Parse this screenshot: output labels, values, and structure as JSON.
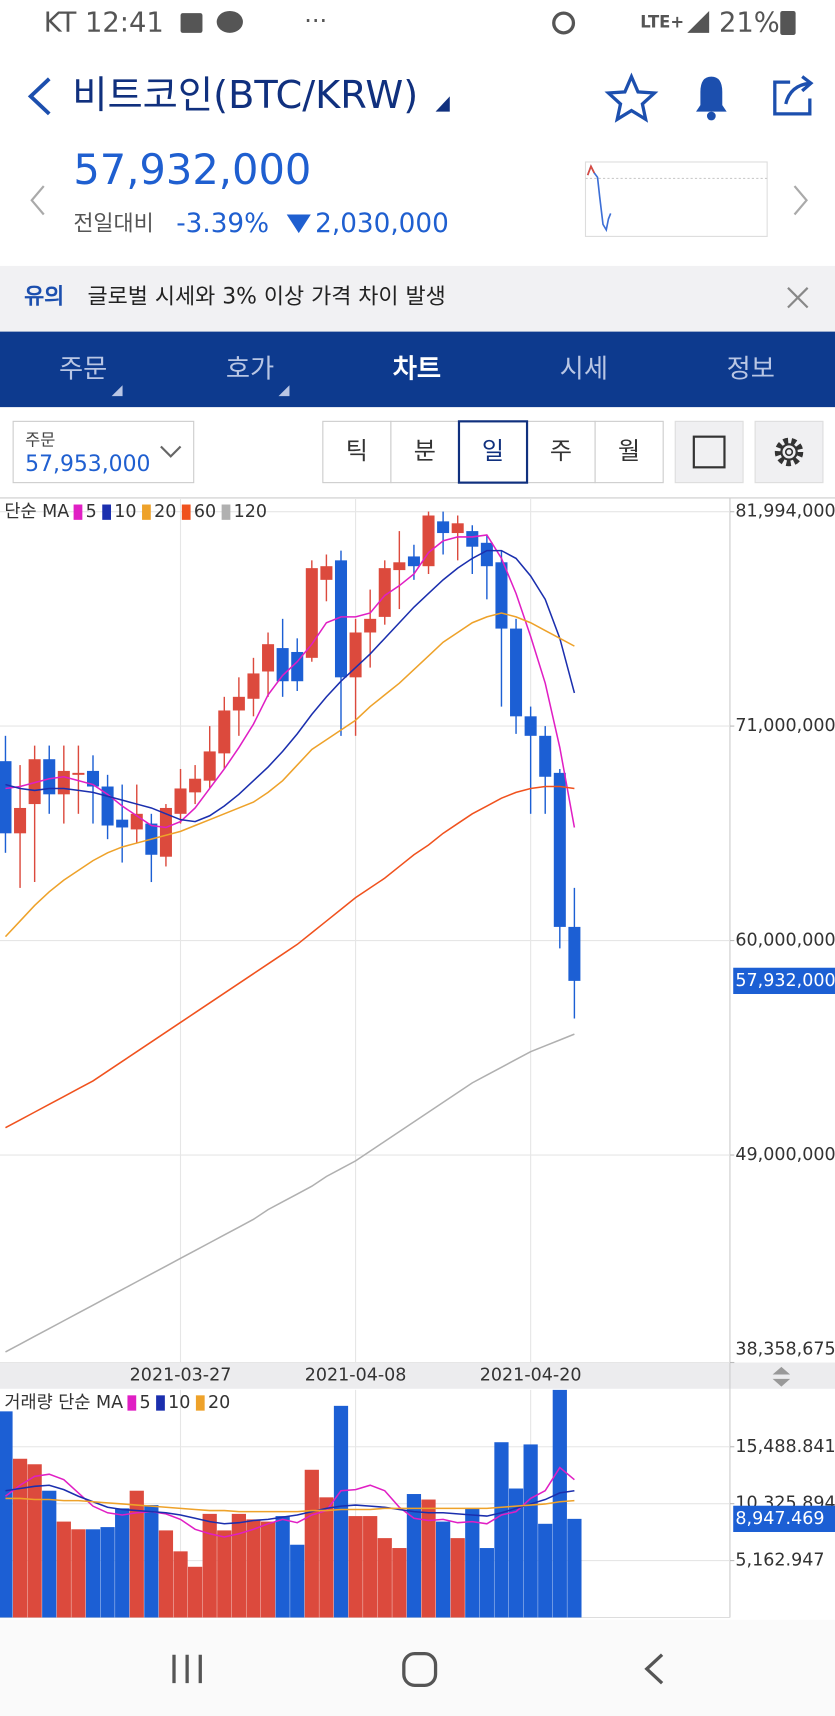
{
  "status_bar": {
    "time": "KT 12:41",
    "network": "LTE+",
    "battery": "21%"
  },
  "header": {
    "title": "비트코인(BTC/KRW)",
    "price": "57,932,000",
    "change_label": "전일대비",
    "change_pct": "-3.39%",
    "change_amount": "2,030,000"
  },
  "notice": {
    "tag": "유의",
    "text": "글로벌 시세와 3% 이상 가격 차이 발생"
  },
  "tabs": [
    "주문",
    "호가",
    "차트",
    "시세",
    "정보"
  ],
  "order": {
    "label": "주문",
    "price": "57,953,000"
  },
  "periods": [
    "틱",
    "분",
    "일",
    "주",
    "월"
  ],
  "chart_data": [
    {
      "type": "candlestick",
      "legend_title": "단순 MA",
      "categories": [
        null,
        null,
        null,
        null,
        null,
        null,
        null,
        null,
        null,
        null,
        null,
        null,
        "2021-03-27",
        null,
        null,
        null,
        null,
        null,
        null,
        null,
        null,
        null,
        null,
        null,
        "2021-04-08",
        null,
        null,
        null,
        null,
        null,
        null,
        null,
        null,
        null,
        null,
        null,
        "2021-04-20",
        null,
        null,
        null
      ],
      "open": [
        69200000,
        65500000,
        67000000,
        69300000,
        67500000,
        68500000,
        68700000,
        67900000,
        66200000,
        65700000,
        66000000,
        64300000,
        66500000,
        67600000,
        68200000,
        69600000,
        71800000,
        72400000,
        73800000,
        75000000,
        74800000,
        74500000,
        78500000,
        79500000,
        73500000,
        75800000,
        76600000,
        79000000,
        79700000,
        79200000,
        81500000,
        80900000,
        81000000,
        80400000,
        79400000,
        76000000,
        71500000,
        70500000,
        68600000,
        60700000
      ],
      "high": [
        70500000,
        69000000,
        70000000,
        70000000,
        70000000,
        70000000,
        69500000,
        68500000,
        68000000,
        68000000,
        66500000,
        67000000,
        68800000,
        69000000,
        71000000,
        72500000,
        73500000,
        74500000,
        75800000,
        76500000,
        75500000,
        79500000,
        79800000,
        80000000,
        76500000,
        78000000,
        79500000,
        81000000,
        80300000,
        82000000,
        82000000,
        81800000,
        81300000,
        80800000,
        80000000,
        76500000,
        72000000,
        71000000,
        68800000,
        62700000
      ],
      "low": [
        64500000,
        62700000,
        63000000,
        66500000,
        66000000,
        66500000,
        66000000,
        65200000,
        64000000,
        65000000,
        63000000,
        63800000,
        66000000,
        67000000,
        67800000,
        68800000,
        70500000,
        71500000,
        72500000,
        72500000,
        72800000,
        74300000,
        77400000,
        70500000,
        70500000,
        74000000,
        76200000,
        77000000,
        78500000,
        78800000,
        79800000,
        79500000,
        78800000,
        77500000,
        72000000,
        70600000,
        66500000,
        66500000,
        59600000,
        56000000
      ],
      "close": [
        65500000,
        66800000,
        69300000,
        67500000,
        68700000,
        68600000,
        67900000,
        65900000,
        65800000,
        66500000,
        64400000,
        66800000,
        67800000,
        68300000,
        69700000,
        71800000,
        72500000,
        73700000,
        75200000,
        73300000,
        73300000,
        79100000,
        79200000,
        73500000,
        75800000,
        76500000,
        79100000,
        79400000,
        79200000,
        81800000,
        80900000,
        81400000,
        80200000,
        79200000,
        76000000,
        71500000,
        70500000,
        68400000,
        60700000,
        57932000
      ],
      "up_color": "#dc4a3d",
      "down_color": "#1c5fd4",
      "ma_series": [
        {
          "name": "5",
          "color": "#e01fc4",
          "values": [
            67800000,
            67900000,
            68100000,
            68300000,
            68400000,
            68200000,
            68000000,
            67500000,
            66900000,
            66400000,
            65900000,
            65800000,
            66100000,
            66800000,
            67800000,
            68800000,
            69900000,
            71100000,
            72600000,
            73600000,
            74300000,
            75200000,
            76300000,
            76600000,
            76600000,
            76800000,
            77700000,
            78200000,
            78800000,
            79900000,
            80500000,
            80700000,
            80700000,
            80800000,
            79600000,
            77800000,
            75600000,
            73200000,
            69900000,
            65800000
          ]
        },
        {
          "name": "10",
          "color": "#1b2fae",
          "values": [
            68000000,
            67800000,
            67700000,
            67800000,
            67800000,
            67700000,
            67600000,
            67400000,
            67200000,
            67000000,
            66800000,
            66500000,
            66200000,
            66100000,
            66400000,
            66900000,
            67500000,
            68200000,
            68900000,
            69700000,
            70600000,
            71600000,
            72500000,
            73300000,
            74000000,
            74700000,
            75500000,
            76300000,
            77100000,
            77800000,
            78500000,
            79100000,
            79600000,
            80000000,
            80000000,
            79600000,
            78700000,
            77500000,
            75500000,
            72700000
          ]
        },
        {
          "name": "20",
          "color": "#eea22a",
          "values": [
            60200000,
            61000000,
            61800000,
            62500000,
            63100000,
            63600000,
            64100000,
            64500000,
            64800000,
            65000000,
            65200000,
            65400000,
            65600000,
            65900000,
            66200000,
            66500000,
            66800000,
            67100000,
            67600000,
            68200000,
            69000000,
            69800000,
            70300000,
            70800000,
            71300000,
            72000000,
            72600000,
            73200000,
            73900000,
            74600000,
            75300000,
            75800000,
            76300000,
            76600000,
            76800000,
            76600000,
            76300000,
            75900000,
            75500000,
            75100000
          ]
        },
        {
          "name": "60",
          "color": "#f0521e",
          "values": [
            50400000,
            50800000,
            51200000,
            51600000,
            52000000,
            52400000,
            52800000,
            53300000,
            53800000,
            54300000,
            54800000,
            55300000,
            55800000,
            56300000,
            56800000,
            57300000,
            57800000,
            58300000,
            58800000,
            59300000,
            59800000,
            60400000,
            61000000,
            61600000,
            62200000,
            62700000,
            63200000,
            63800000,
            64400000,
            64900000,
            65500000,
            66000000,
            66500000,
            66900000,
            67300000,
            67600000,
            67800000,
            67900000,
            67900000,
            67800000
          ]
        },
        {
          "name": "120",
          "color": "#b0b0b0",
          "values": [
            38900000,
            39300000,
            39700000,
            40100000,
            40500000,
            40900000,
            41300000,
            41700000,
            42100000,
            42500000,
            42900000,
            43300000,
            43700000,
            44100000,
            44500000,
            44900000,
            45300000,
            45700000,
            46200000,
            46600000,
            47000000,
            47400000,
            47900000,
            48300000,
            48700000,
            49200000,
            49700000,
            50200000,
            50700000,
            51200000,
            51700000,
            52200000,
            52700000,
            53100000,
            53500000,
            53900000,
            54300000,
            54600000,
            54900000,
            55200000
          ]
        }
      ],
      "ylim": [
        38358675,
        82700000
      ],
      "yticks": [
        {
          "value": 81994000,
          "label": "81,994,000"
        },
        {
          "value": 71000000,
          "label": "71,000,000"
        },
        {
          "value": 60000000,
          "label": "60,000,000"
        },
        {
          "value": 49000000,
          "label": "49,000,000"
        },
        {
          "value": 38358675,
          "label": "38,358,675"
        }
      ],
      "last_label": "57,932,000"
    },
    {
      "type": "bar",
      "legend_title": "거래량 단순 MA",
      "values": [
        18700,
        14400,
        13900,
        11500,
        8700,
        8000,
        8000,
        8200,
        9900,
        11500,
        10200,
        7900,
        6000,
        4600,
        9400,
        7900,
        9400,
        8900,
        8700,
        9200,
        6600,
        13400,
        10900,
        19200,
        9200,
        9200,
        7200,
        6300,
        11200,
        10700,
        8700,
        7200,
        9900,
        6300,
        15900,
        11700,
        15700,
        8500,
        21000,
        8947.469
      ],
      "up_color": "#dc4a3d",
      "down_color": "#1c5fd4",
      "ma_series": [
        {
          "name": "5",
          "color": "#e01fc4",
          "values": [
            11000,
            12000,
            12800,
            13000,
            12500,
            11300,
            10100,
            9500,
            9300,
            9500,
            9600,
            9400,
            8900,
            8000,
            7600,
            7300,
            7600,
            8000,
            8500,
            8900,
            8600,
            9300,
            9700,
            11500,
            11600,
            12000,
            11500,
            10000,
            9000,
            8800,
            8900,
            8600,
            8700,
            8500,
            9300,
            9600,
            10800,
            11500,
            13600,
            12500
          ]
        },
        {
          "name": "10",
          "color": "#1b2fae",
          "values": [
            11500,
            11700,
            11900,
            12000,
            11600,
            11000,
            10500,
            10000,
            9800,
            9700,
            9600,
            9500,
            9300,
            9000,
            8700,
            8500,
            8600,
            8800,
            8900,
            9100,
            9300,
            9600,
            9900,
            10100,
            10200,
            10100,
            10000,
            9800,
            9600,
            9500,
            9500,
            9400,
            9300,
            9200,
            9500,
            9900,
            10300,
            10700,
            11300,
            11500
          ]
        },
        {
          "name": "20",
          "color": "#eea22a",
          "values": [
            10800,
            10800,
            10700,
            10700,
            10600,
            10600,
            10500,
            10400,
            10300,
            10200,
            10100,
            10000,
            9900,
            9800,
            9700,
            9700,
            9600,
            9600,
            9600,
            9600,
            9600,
            9700,
            9700,
            9800,
            9800,
            9800,
            9900,
            9900,
            9900,
            9900,
            9900,
            9900,
            9900,
            9900,
            10000,
            10100,
            10200,
            10300,
            10500,
            10600
          ]
        }
      ],
      "ylim": [
        0,
        20650
      ],
      "yticks": [
        {
          "value": 15488.841,
          "label": "15,488.841"
        },
        {
          "value": 10325.894,
          "label": "10,325.894"
        },
        {
          "value": 5162.947,
          "label": "5,162.947"
        }
      ],
      "last_label": "8,947.469"
    }
  ]
}
